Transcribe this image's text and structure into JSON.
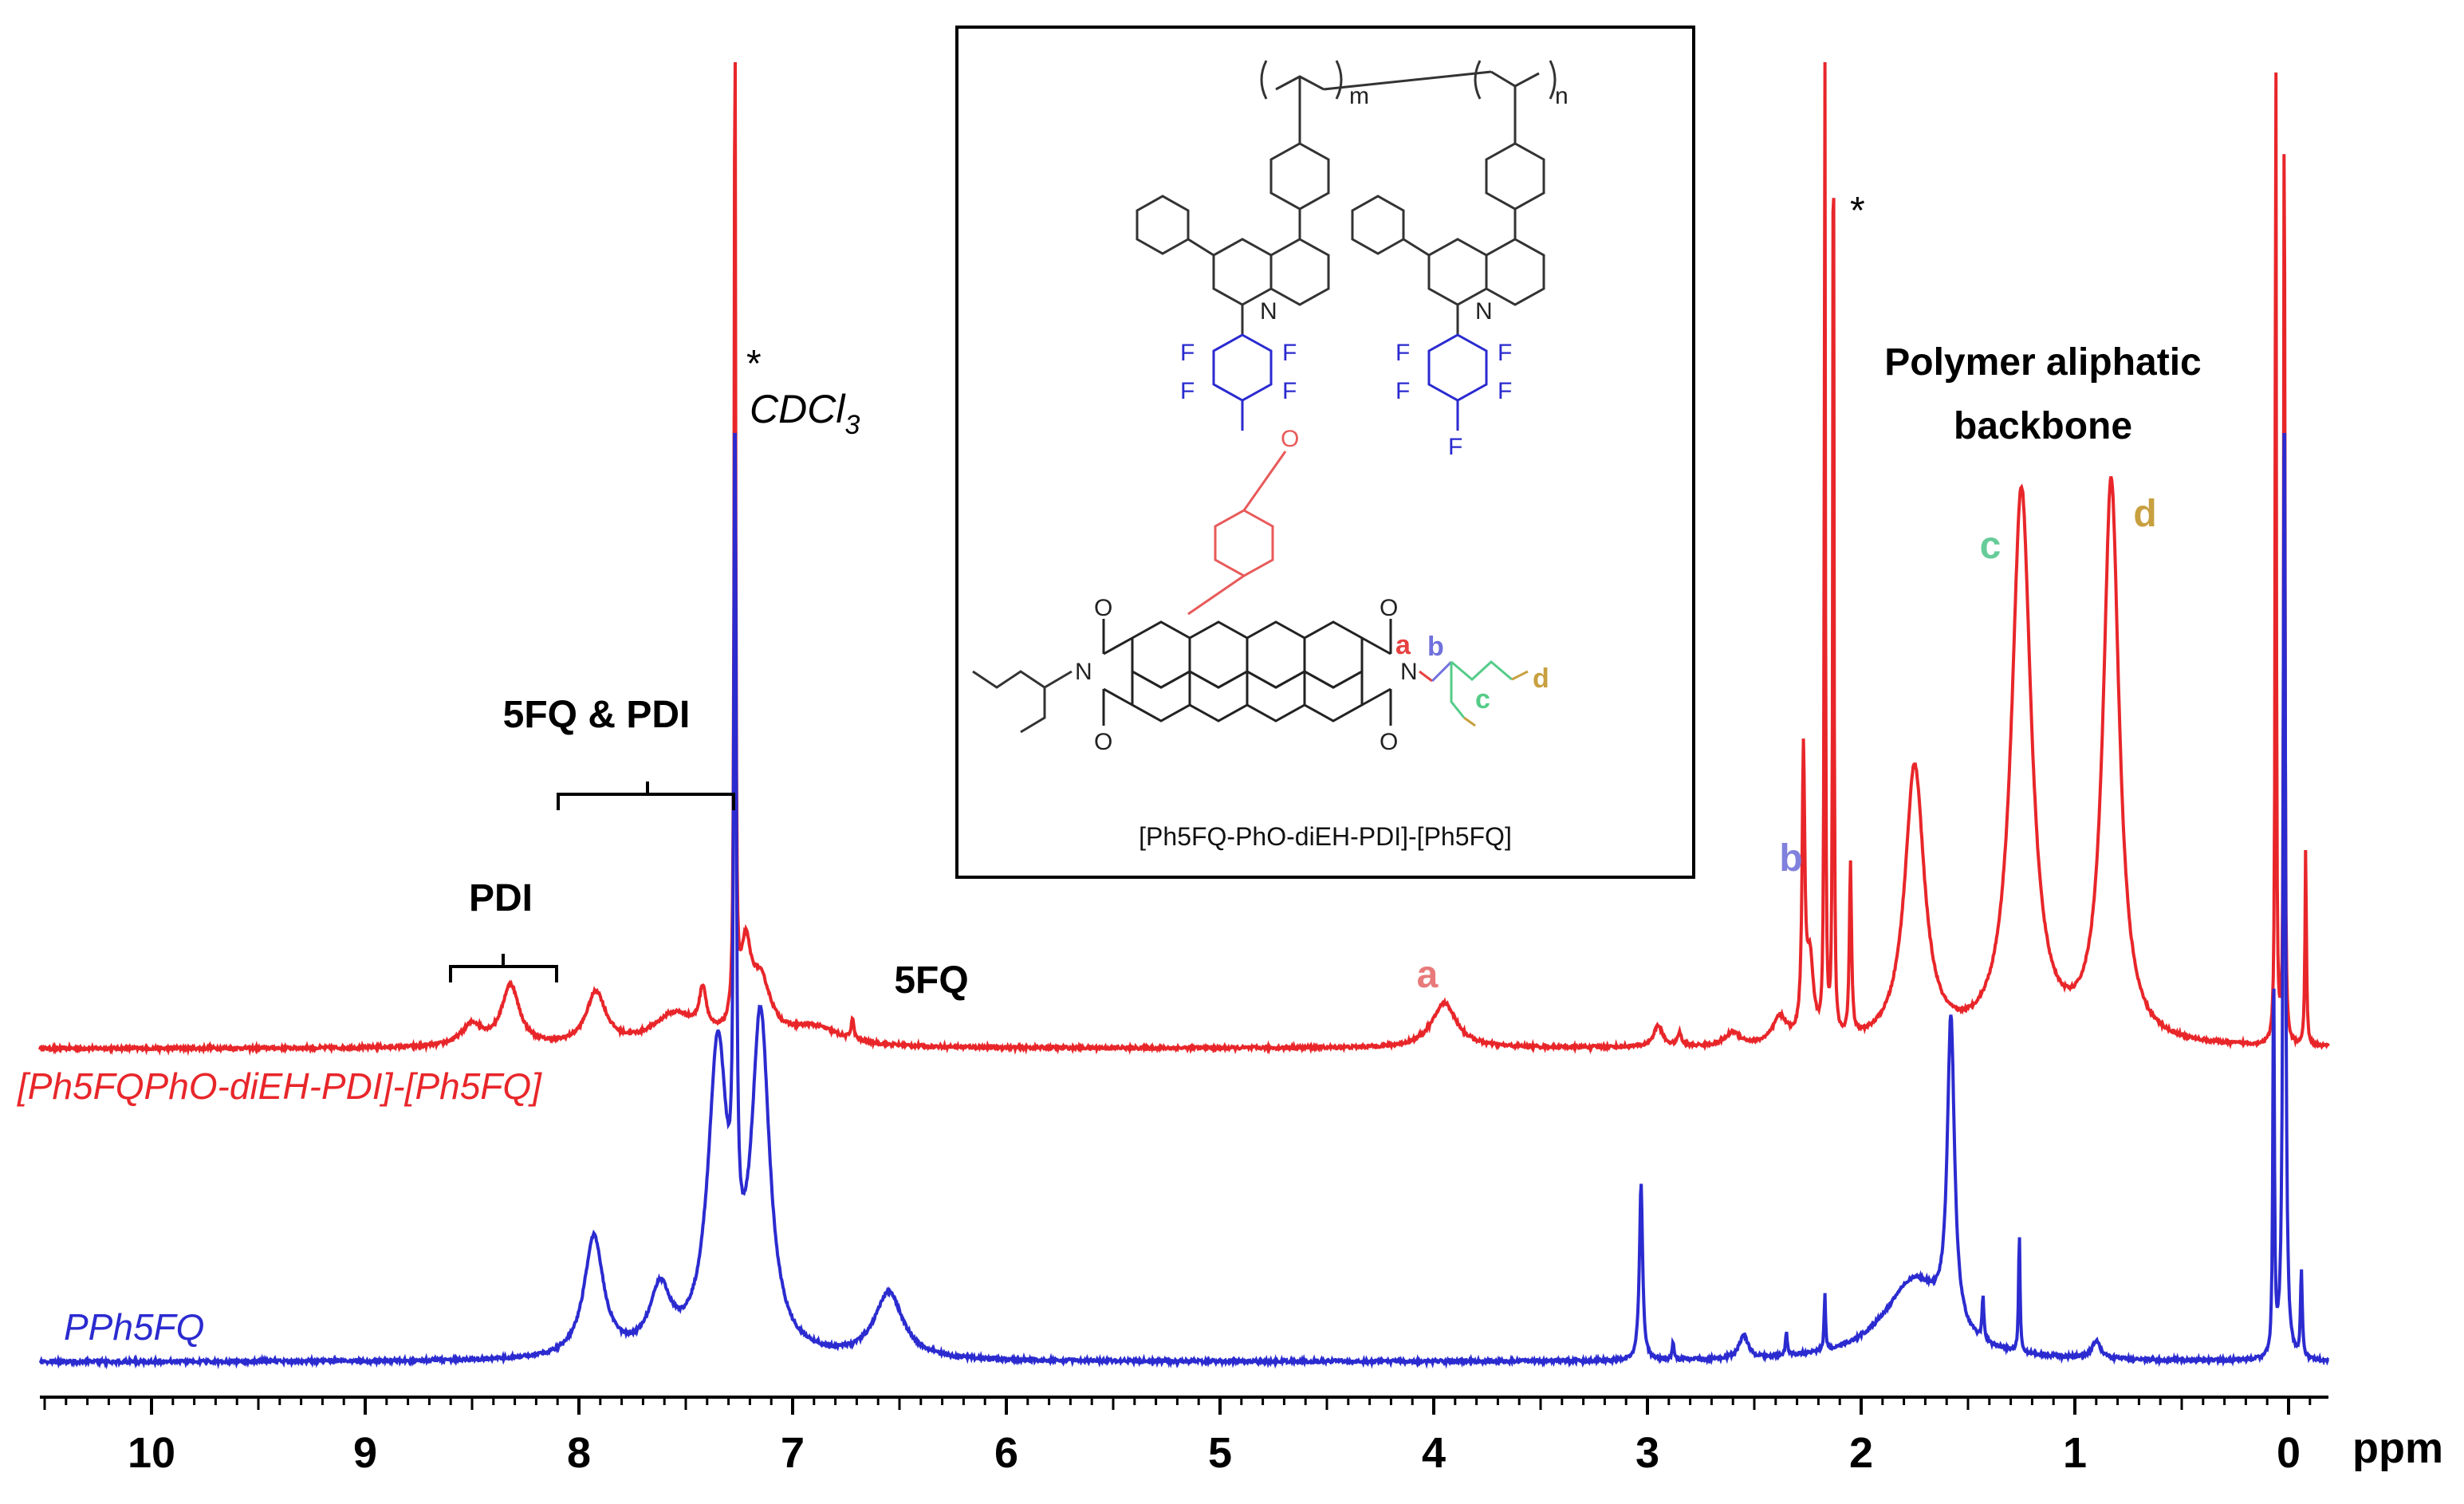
{
  "chart_data": {
    "type": "line",
    "title": "",
    "xlabel": "ppm",
    "ylabel": "",
    "xlim": [
      10.5,
      -0.15
    ],
    "x_reversed": true,
    "x_major_ticks": [
      10,
      9,
      8,
      7,
      6,
      5,
      4,
      3,
      2,
      1,
      0
    ],
    "x_minor_step": 0.1,
    "grid": false,
    "series": [
      {
        "name": "[Ph5FQPhO-diEH-PDI]-[Ph5FQ]",
        "color": "#e8262a",
        "label_color": "#e8262a",
        "baseline": 0.0,
        "peaks": [
          {
            "ppm": 8.32,
            "height": 0.23,
            "width": 0.1
          },
          {
            "ppm": 8.5,
            "height": 0.08,
            "width": 0.12
          },
          {
            "ppm": 7.92,
            "height": 0.2,
            "width": 0.11
          },
          {
            "ppm": 7.55,
            "height": 0.12,
            "width": 0.25
          },
          {
            "ppm": 7.42,
            "height": 0.16,
            "width": 0.04
          },
          {
            "ppm": 7.27,
            "height": 3.95,
            "width": 0.008
          },
          {
            "ppm": 7.22,
            "height": 0.3,
            "width": 0.06
          },
          {
            "ppm": 7.15,
            "height": 0.22,
            "width": 0.12
          },
          {
            "ppm": 6.72,
            "height": 0.08,
            "width": 0.015
          },
          {
            "ppm": 6.9,
            "height": 0.07,
            "width": 0.3
          },
          {
            "ppm": 3.95,
            "height": 0.17,
            "width": 0.14
          },
          {
            "ppm": 2.95,
            "height": 0.08,
            "width": 0.05
          },
          {
            "ppm": 2.85,
            "height": 0.05,
            "width": 0.02
          },
          {
            "ppm": 2.6,
            "height": 0.05,
            "width": 0.08
          },
          {
            "ppm": 2.38,
            "height": 0.1,
            "width": 0.08
          },
          {
            "ppm": 2.27,
            "height": 1.05,
            "width": 0.015
          },
          {
            "ppm": 2.24,
            "height": 0.3,
            "width": 0.04
          },
          {
            "ppm": 2.17,
            "height": 4.0,
            "width": 0.006
          },
          {
            "ppm": 2.13,
            "height": 4.0,
            "width": 0.006
          },
          {
            "ppm": 2.05,
            "height": 0.65,
            "width": 0.012
          },
          {
            "ppm": 1.75,
            "height": 1.05,
            "width": 0.11
          },
          {
            "ppm": 1.25,
            "height": 2.1,
            "width": 0.11
          },
          {
            "ppm": 0.83,
            "height": 2.13,
            "width": 0.09
          },
          {
            "ppm": 0.06,
            "height": 4.0,
            "width": 0.006
          },
          {
            "ppm": 0.02,
            "height": 4.0,
            "width": 0.006
          },
          {
            "ppm": -0.08,
            "height": 0.75,
            "width": 0.008
          }
        ]
      },
      {
        "name": "PPh5FQ",
        "color": "#2b2bd0",
        "label_color": "#2b2bd0",
        "baseline": 0.0,
        "peaks": [
          {
            "ppm": 7.93,
            "height": 0.42,
            "width": 0.11
          },
          {
            "ppm": 7.62,
            "height": 0.22,
            "width": 0.12
          },
          {
            "ppm": 7.27,
            "height": 3.3,
            "width": 0.012
          },
          {
            "ppm": 7.35,
            "height": 1.05,
            "width": 0.11
          },
          {
            "ppm": 7.15,
            "height": 1.15,
            "width": 0.1
          },
          {
            "ppm": 6.55,
            "height": 0.23,
            "width": 0.16
          },
          {
            "ppm": 3.03,
            "height": 0.62,
            "width": 0.018
          },
          {
            "ppm": 2.88,
            "height": 0.06,
            "width": 0.01
          },
          {
            "ppm": 2.55,
            "height": 0.08,
            "width": 0.05
          },
          {
            "ppm": 2.35,
            "height": 0.08,
            "width": 0.01
          },
          {
            "ppm": 2.17,
            "height": 0.2,
            "width": 0.008
          },
          {
            "ppm": 1.58,
            "height": 1.07,
            "width": 0.04
          },
          {
            "ppm": 1.75,
            "height": 0.28,
            "width": 0.35
          },
          {
            "ppm": 1.43,
            "height": 0.15,
            "width": 0.01
          },
          {
            "ppm": 1.26,
            "height": 0.42,
            "width": 0.008
          },
          {
            "ppm": 0.9,
            "height": 0.06,
            "width": 0.05
          },
          {
            "ppm": 0.07,
            "height": 1.4,
            "width": 0.008
          },
          {
            "ppm": 0.02,
            "height": 3.6,
            "width": 0.012
          },
          {
            "ppm": -0.06,
            "height": 0.3,
            "width": 0.01
          }
        ]
      }
    ],
    "annotations": [
      {
        "text": "PDI",
        "ppm": 8.35,
        "color": "#000000"
      },
      {
        "text": "5FQ & PDI",
        "ppm": 7.7,
        "color": "#000000"
      },
      {
        "text": "*",
        "ppm": 7.27,
        "color": "#000000"
      },
      {
        "text": "CDCl3",
        "ppm": 7.27,
        "color": "#000000"
      },
      {
        "text": "5FQ",
        "ppm": 6.6,
        "color": "#000000"
      },
      {
        "text": "a",
        "ppm": 3.95,
        "color": "#e87a7a"
      },
      {
        "text": "b",
        "ppm": 2.3,
        "color": "#8080dd"
      },
      {
        "text": "*",
        "ppm": 2.05,
        "color": "#000000"
      },
      {
        "text": "Polymer aliphatic",
        "ppm": 1.2,
        "color": "#000000"
      },
      {
        "text": "backbone",
        "ppm": 1.2,
        "color": "#000000"
      },
      {
        "text": "c",
        "ppm": 1.5,
        "color": "#66cc99"
      },
      {
        "text": "d",
        "ppm": 0.7,
        "color": "#c8a040"
      }
    ]
  },
  "labels": {
    "pdi": "PDI",
    "fivefq_pdi": "5FQ & PDI",
    "star1": "*",
    "cdcl3_main": "CDCl",
    "cdcl3_sub": "3",
    "fivefq": "5FQ",
    "peak_a": "a",
    "peak_b": "b",
    "star2": "*",
    "aliphatic1": "Polymer aliphatic",
    "aliphatic2": "backbone",
    "peak_c": "c",
    "peak_d": "d",
    "red_series": "[Ph5FQPhO-diEH-PDI]-[Ph5FQ]",
    "blue_series": "PPh5FQ",
    "axis_unit": "ppm"
  },
  "inset": {
    "caption": "[Ph5FQ-PhO-diEH-PDI]-[Ph5FQ]",
    "sub_m": "m",
    "sub_n": "n",
    "atom_N": "N",
    "atom_F": "F",
    "atom_O": "O",
    "label_a": "a",
    "label_b": "b",
    "label_c": "c",
    "label_d": "d",
    "colors": {
      "fluoro": "#2a2ad0",
      "phenoxy": "#e85a5a",
      "a": "#e84040",
      "b": "#7070dd",
      "c": "#55cc88",
      "d": "#c8a040"
    }
  }
}
